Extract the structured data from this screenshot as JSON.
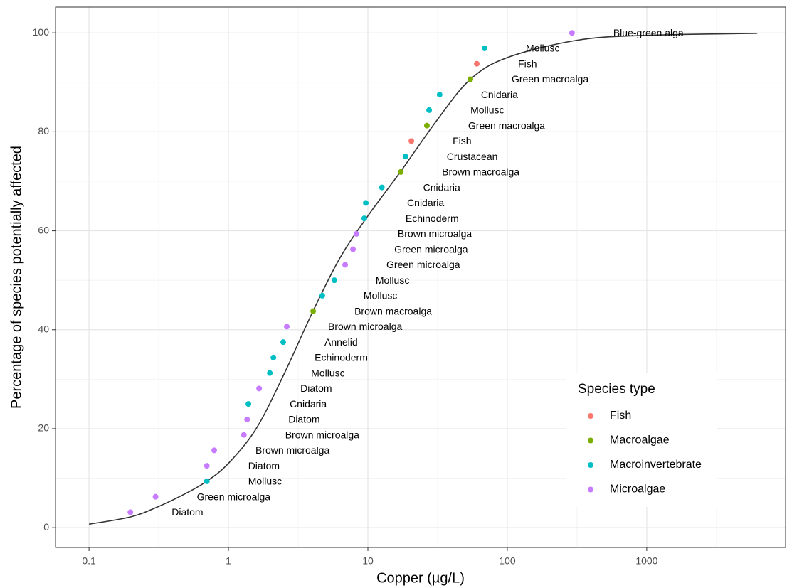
{
  "chart_data": {
    "type": "scatter",
    "x_label": "Copper (µg/L)",
    "y_label": "Percentage of species potentially affected",
    "log_x": true,
    "xlim": [
      0.0575,
      9900
    ],
    "ylim": [
      -4,
      105.2
    ],
    "xticks": [
      0.1,
      1,
      10,
      100,
      1000
    ],
    "yticks": [
      0,
      20,
      40,
      60,
      80,
      100
    ],
    "grid": true,
    "legend": {
      "title": "Species type",
      "position": "bottom-right"
    },
    "fit": {
      "color": "#333333",
      "x": [
        0.1,
        0.2,
        0.316,
        0.5,
        0.7,
        1,
        1.58,
        2.5,
        4,
        6.3,
        10,
        17.2,
        31.6,
        54.3,
        100,
        316,
        1000,
        6200
      ],
      "values": [
        0.7,
        2.2,
        4.3,
        7,
        9.4,
        13,
        20,
        31,
        43.5,
        54.5,
        63,
        72,
        82.5,
        90.6,
        95,
        98.5,
        99.5,
        99.9
      ]
    },
    "series": [
      {
        "name": "Fish",
        "color": "#F8766D",
        "x": [
          20.5,
          60.4
        ],
        "values": [
          78.125,
          93.75
        ],
        "labels": [
          "Fish",
          "Fish"
        ]
      },
      {
        "name": "Macroalgae",
        "color": "#7CAE00",
        "x": [
          4.05,
          17.2,
          26.5,
          54.3
        ],
        "values": [
          43.75,
          71.875,
          81.25,
          90.625
        ],
        "labels": [
          "Brown macroalga",
          "Brown macroalga",
          "Green macroalga",
          "Green macroalga"
        ]
      },
      {
        "name": "Macroinvertebrate",
        "color": "#00BFC4",
        "x": [
          0.7,
          1.39,
          1.98,
          2.1,
          2.47,
          4.71,
          5.75,
          9.42,
          9.66,
          12.6,
          18.6,
          27.5,
          32.7,
          68.7
        ],
        "values": [
          9.375,
          25,
          31.25,
          34.375,
          37.5,
          46.875,
          50,
          62.5,
          65.625,
          68.75,
          75,
          84.375,
          87.5,
          96.875
        ],
        "labels": [
          "Mollusc",
          "Cnidaria",
          "Mollusc",
          "Echinoderm",
          "Annelid",
          "Mollusc",
          "Mollusc",
          "Echinoderm",
          "Cnidaria",
          "Cnidaria",
          "Crustacean",
          "Mollusc",
          "Cnidaria",
          "Mollusc"
        ]
      },
      {
        "name": "Microalgae",
        "color": "#C77CFF",
        "x": [
          0.198,
          0.3,
          0.7,
          0.79,
          1.29,
          1.36,
          1.66,
          2.62,
          6.87,
          7.82,
          8.28,
          291
        ],
        "values": [
          3.125,
          6.25,
          12.5,
          15.625,
          18.75,
          21.875,
          28.125,
          40.625,
          53.125,
          56.25,
          59.375,
          100
        ],
        "labels": [
          "Diatom",
          "Green microalga",
          "Diatom",
          "Brown microalga",
          "Brown microalga",
          "Diatom",
          "Diatom",
          "Brown microalga",
          "Green microalga",
          "Green microalga",
          "Brown microalga",
          "Blue-green alga"
        ]
      }
    ]
  }
}
